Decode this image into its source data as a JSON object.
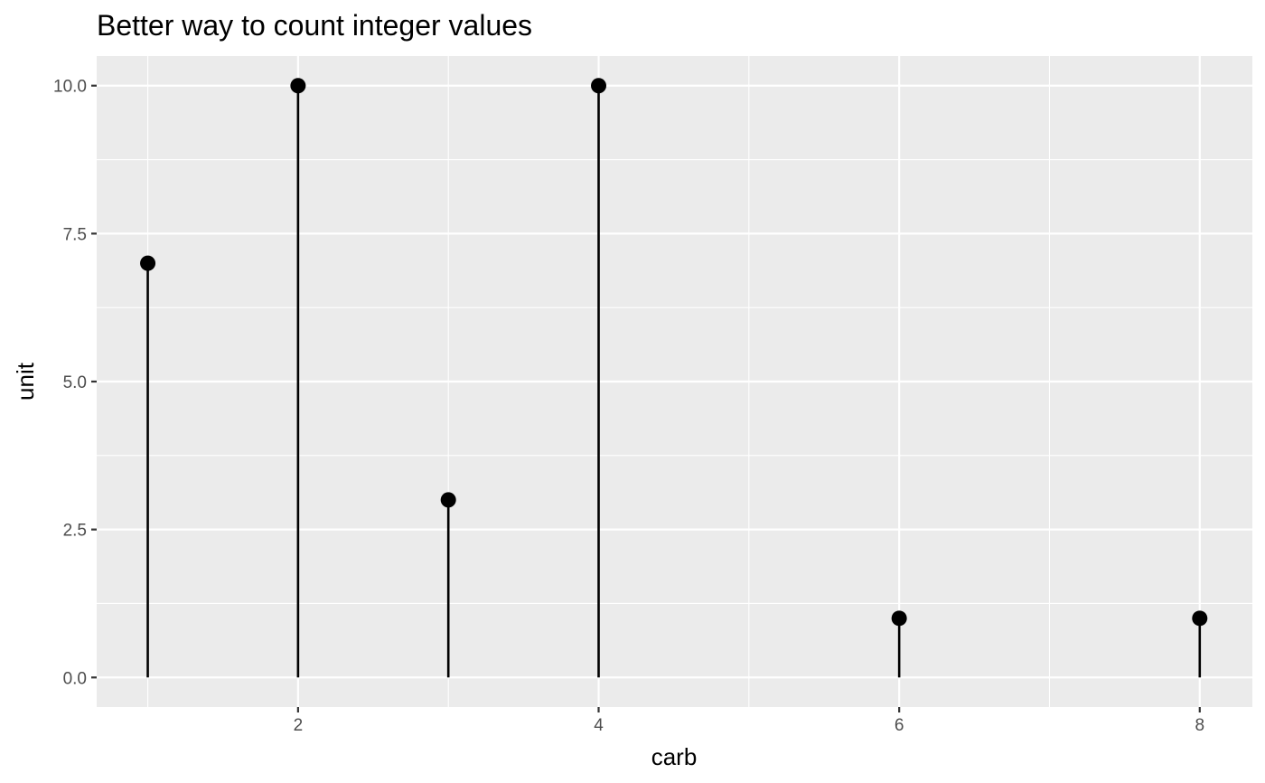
{
  "chart_data": {
    "type": "lollipop",
    "title": "Better way to count integer values",
    "xlabel": "carb",
    "ylabel": "unit",
    "x": [
      1,
      2,
      3,
      4,
      6,
      8
    ],
    "values": [
      7,
      10,
      3,
      10,
      1,
      1
    ],
    "xlim": [
      0.66,
      8.35
    ],
    "ylim": [
      -0.5,
      10.5
    ],
    "x_ticks": [
      2,
      4,
      6,
      8
    ],
    "x_minor": [
      1,
      3,
      5,
      7
    ],
    "x_tick_labels": [
      "2",
      "4",
      "6",
      "8"
    ],
    "y_ticks": [
      0,
      2.5,
      5,
      7.5,
      10
    ],
    "y_minor": [
      1.25,
      3.75,
      6.25,
      8.75
    ],
    "y_tick_labels": [
      "0.0",
      "2.5",
      "5.0",
      "7.5",
      "10.0"
    ],
    "grid": true,
    "legend": "none",
    "colors": {
      "panel": "#ebebeb",
      "grid": "#ffffff",
      "mark": "#000000",
      "tick_text": "#4d4d4d"
    }
  }
}
